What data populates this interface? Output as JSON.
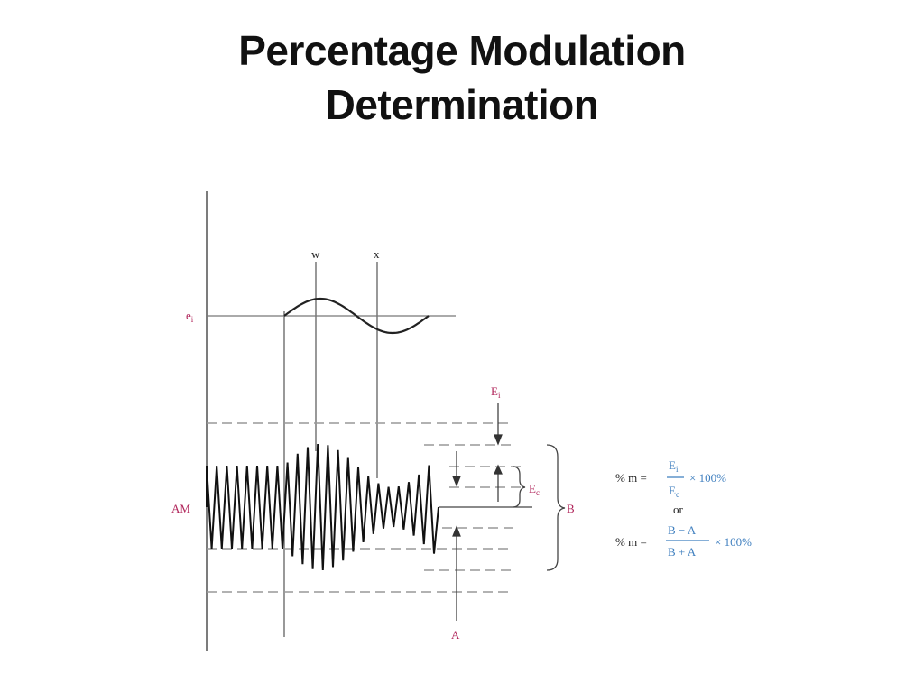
{
  "slide": {
    "title_line1": "Percentage Modulation",
    "title_line2": "Determination"
  },
  "labels": {
    "ei_main": "e",
    "ei_sub": "i",
    "w": "w",
    "x": "x",
    "am": "AM",
    "Ei_main": "E",
    "Ei_sub": "i",
    "Ec_main": "E",
    "Ec_sub": "c",
    "B": "B",
    "A": "A"
  },
  "formula": {
    "pm_prefix_1": "% m =",
    "num_1_main": "E",
    "num_1_sub": "i",
    "den_1_main": "E",
    "den_1_sub": "c",
    "times_1": "× 100%",
    "or": "or",
    "pm_prefix_2": "% m =",
    "num_2": "B − A",
    "den_2": "B + A",
    "times_2": "× 100%"
  },
  "colors": {
    "line": "#222222",
    "grey_line": "#888888",
    "dash": "#999999",
    "red_label": "#b0245a",
    "blue_label": "#3f7fbf"
  }
}
